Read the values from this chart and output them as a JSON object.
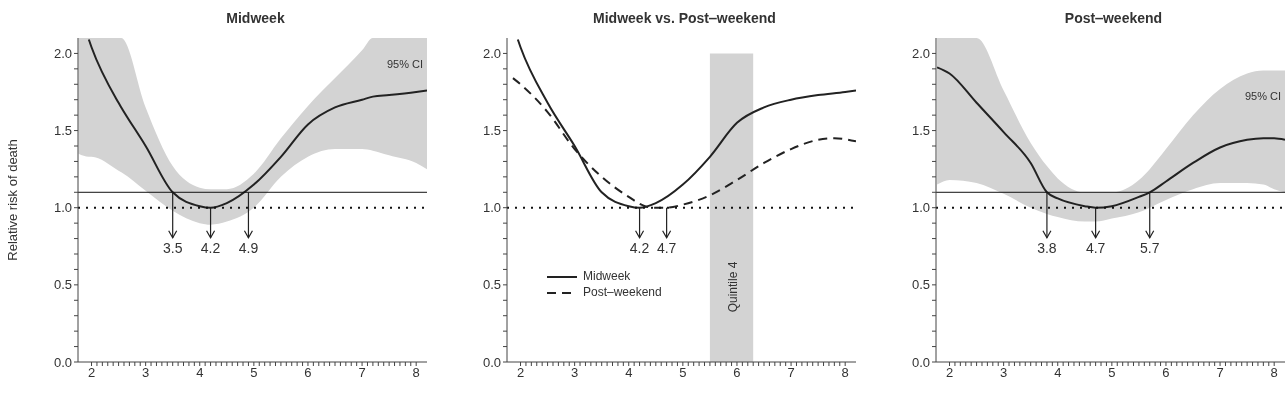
{
  "chart_data": [
    {
      "type": "line",
      "title": "Midweek",
      "ylabel": "Relative risk of death",
      "series": [
        {
          "color": "#222222",
          "line_style": "solid",
          "x": [
            1.76,
            1.95,
            2.0,
            2.5,
            2.55,
            3.0,
            3.5,
            4.0,
            4.2,
            4.5,
            5.0,
            5.5,
            6.0,
            6.5,
            7.0,
            7.2,
            7.5,
            8.0,
            8.2
          ],
          "values": [
            null,
            2.09,
            2.04,
            1.68,
            1.65,
            1.4,
            1.1,
            1.01,
            1.0,
            1.03,
            1.15,
            1.33,
            1.54,
            1.65,
            1.7,
            1.72,
            1.73,
            1.75,
            1.76
          ],
          "lower": [
            1.35,
            1.33,
            1.33,
            1.24,
            1.23,
            1.11,
            0.98,
            0.9,
            0.89,
            0.91,
            1.0,
            1.2,
            1.33,
            1.38,
            1.38,
            1.37,
            1.34,
            1.29,
            1.25
          ],
          "upper": [
            2.1,
            2.1,
            2.1,
            2.1,
            2.1,
            1.65,
            1.27,
            1.13,
            1.12,
            1.12,
            1.22,
            1.45,
            1.66,
            1.84,
            2.02,
            2.1,
            2.1,
            2.1,
            2.1
          ]
        }
      ],
      "xlim": [
        1.75,
        8.2
      ],
      "ylim": [
        0,
        2.1
      ],
      "xticks": [
        2,
        {
          "value": 2.1,
          "label": null
        },
        {
          "value": 2.2,
          "label": null
        },
        {
          "value": 2.3,
          "label": null
        },
        {
          "value": 2.4,
          "label": null
        },
        {
          "value": 2.5,
          "label": null
        },
        {
          "value": 2.6,
          "label": null
        },
        {
          "value": 2.7,
          "label": null
        },
        {
          "value": 2.8,
          "label": null
        },
        {
          "value": 2.9,
          "label": null
        },
        3,
        {
          "value": 3.1,
          "label": null
        },
        {
          "value": 3.2,
          "label": null
        },
        {
          "value": 3.3,
          "label": null
        },
        {
          "value": 3.4,
          "label": null
        },
        {
          "value": 3.5,
          "label": null
        },
        {
          "value": 3.6,
          "label": null
        },
        {
          "value": 3.7,
          "label": null
        },
        {
          "value": 3.8,
          "label": null
        },
        {
          "value": 3.9,
          "label": null
        },
        4,
        {
          "value": 4.1,
          "label": null
        },
        {
          "value": 4.2,
          "label": null
        },
        {
          "value": 4.3,
          "label": null
        },
        {
          "value": 4.4,
          "label": null
        },
        {
          "value": 4.5,
          "label": null
        },
        {
          "value": 4.6,
          "label": null
        },
        {
          "value": 4.7,
          "label": null
        },
        {
          "value": 4.8,
          "label": null
        },
        {
          "value": 4.9,
          "label": null
        },
        5,
        {
          "value": 5.1,
          "label": null
        },
        {
          "value": 5.2,
          "label": null
        },
        {
          "value": 5.3,
          "label": null
        },
        {
          "value": 5.4,
          "label": null
        },
        {
          "value": 5.5,
          "label": null
        },
        {
          "value": 5.6,
          "label": null
        },
        {
          "value": 5.7,
          "label": null
        },
        {
          "value": 5.8,
          "label": null
        },
        {
          "value": 5.9,
          "label": null
        },
        6,
        {
          "value": 6.1,
          "label": null
        },
        {
          "value": 6.2,
          "label": null
        },
        {
          "value": 6.3,
          "label": null
        },
        {
          "value": 6.4,
          "label": null
        },
        {
          "value": 6.5,
          "label": null
        },
        {
          "value": 6.6,
          "label": null
        },
        {
          "value": 6.7,
          "label": null
        },
        {
          "value": 6.8,
          "label": null
        },
        {
          "value": 6.9,
          "label": null
        },
        7,
        {
          "value": 7.1,
          "label": null
        },
        {
          "value": 7.2,
          "label": null
        },
        {
          "value": 7.3,
          "label": null
        },
        {
          "value": 7.4,
          "label": null
        },
        {
          "value": 7.5,
          "label": null
        },
        {
          "value": 7.6,
          "label": null
        },
        {
          "value": 7.7,
          "label": null
        },
        {
          "value": 7.8,
          "label": null
        },
        {
          "value": 7.9,
          "label": null
        },
        8
      ],
      "yticks": [
        {
          "value": 0,
          "label": "0.0"
        },
        {
          "value": 0.1,
          "label": null
        },
        {
          "value": 0.2,
          "label": null
        },
        {
          "value": 0.3,
          "label": null
        },
        {
          "value": 0.4,
          "label": null
        },
        {
          "value": 0.5,
          "label": "0.5"
        },
        {
          "value": 0.6,
          "label": null
        },
        {
          "value": 0.7,
          "label": null
        },
        {
          "value": 0.8,
          "label": null
        },
        {
          "value": 0.9,
          "label": null
        },
        {
          "value": 1,
          "label": "1.0"
        },
        {
          "value": 1.1,
          "label": null
        },
        {
          "value": 1.2,
          "label": null
        },
        {
          "value": 1.3,
          "label": null
        },
        {
          "value": 1.4,
          "label": null
        },
        {
          "value": 1.5,
          "label": "1.5"
        },
        {
          "value": 1.6,
          "label": null
        },
        {
          "value": 1.7,
          "label": null
        },
        {
          "value": 1.8,
          "label": null
        },
        {
          "value": 1.9,
          "label": null
        },
        {
          "value": 2,
          "label": "2.0"
        }
      ],
      "ref_lines": [
        {
          "axis": "y",
          "value": 1.1,
          "line_style": "solid"
        },
        {
          "axis": "y",
          "value": 1.0,
          "line_style": "dotted"
        }
      ],
      "annotations": [
        "95% CI",
        {
          "text": "3.5",
          "x": 3.5,
          "y": 1.1
        },
        {
          "text": "4.2",
          "x": 4.2,
          "y": 1.0
        },
        {
          "text": "4.9",
          "x": 4.9,
          "y": 1.1
        }
      ]
    },
    {
      "type": "line",
      "title": "Midweek vs. Post‒weekend",
      "series": [
        {
          "name": "Midweek",
          "color": "#222222",
          "line_style": "solid",
          "x": [
            1.95,
            2.0,
            2.5,
            3.0,
            3.5,
            4.0,
            4.2,
            4.5,
            5.0,
            5.5,
            6.0,
            6.5,
            7.0,
            7.5,
            8.0,
            8.2
          ],
          "values": [
            2.09,
            2.04,
            1.68,
            1.4,
            1.1,
            1.01,
            1.0,
            1.03,
            1.15,
            1.33,
            1.55,
            1.65,
            1.7,
            1.73,
            1.75,
            1.76
          ]
        },
        {
          "name": "Post‒weekend",
          "color": "#222222",
          "line_style": "dashed",
          "x": [
            1.86,
            2.0,
            2.5,
            3.0,
            3.5,
            4.0,
            4.3,
            4.5,
            4.7,
            5.0,
            5.5,
            6.0,
            6.5,
            7.0,
            7.5,
            7.8,
            8.2
          ],
          "values": [
            1.84,
            1.8,
            1.62,
            1.38,
            1.2,
            1.07,
            1.01,
            1.0,
            1.0,
            1.02,
            1.08,
            1.18,
            1.29,
            1.38,
            1.44,
            1.45,
            1.43
          ]
        }
      ],
      "xlim": [
        1.75,
        8.2
      ],
      "ylim": [
        0,
        2.1
      ],
      "xticks": [
        2,
        {
          "value": 2.1,
          "label": null
        },
        {
          "value": 2.2,
          "label": null
        },
        {
          "value": 2.3,
          "label": null
        },
        {
          "value": 2.4,
          "label": null
        },
        {
          "value": 2.5,
          "label": null
        },
        {
          "value": 2.6,
          "label": null
        },
        {
          "value": 2.7,
          "label": null
        },
        {
          "value": 2.8,
          "label": null
        },
        {
          "value": 2.9,
          "label": null
        },
        3,
        {
          "value": 3.1,
          "label": null
        },
        {
          "value": 3.2,
          "label": null
        },
        {
          "value": 3.3,
          "label": null
        },
        {
          "value": 3.4,
          "label": null
        },
        {
          "value": 3.5,
          "label": null
        },
        {
          "value": 3.6,
          "label": null
        },
        {
          "value": 3.7,
          "label": null
        },
        {
          "value": 3.8,
          "label": null
        },
        {
          "value": 3.9,
          "label": null
        },
        4,
        {
          "value": 4.1,
          "label": null
        },
        {
          "value": 4.2,
          "label": null
        },
        {
          "value": 4.3,
          "label": null
        },
        {
          "value": 4.4,
          "label": null
        },
        {
          "value": 4.5,
          "label": null
        },
        {
          "value": 4.6,
          "label": null
        },
        {
          "value": 4.7,
          "label": null
        },
        {
          "value": 4.8,
          "label": null
        },
        {
          "value": 4.9,
          "label": null
        },
        5,
        {
          "value": 5.1,
          "label": null
        },
        {
          "value": 5.2,
          "label": null
        },
        {
          "value": 5.3,
          "label": null
        },
        {
          "value": 5.4,
          "label": null
        },
        {
          "value": 5.5,
          "label": null
        },
        {
          "value": 5.6,
          "label": null
        },
        {
          "value": 5.7,
          "label": null
        },
        {
          "value": 5.8,
          "label": null
        },
        {
          "value": 5.9,
          "label": null
        },
        6,
        {
          "value": 6.1,
          "label": null
        },
        {
          "value": 6.2,
          "label": null
        },
        {
          "value": 6.3,
          "label": null
        },
        {
          "value": 6.4,
          "label": null
        },
        {
          "value": 6.5,
          "label": null
        },
        {
          "value": 6.6,
          "label": null
        },
        {
          "value": 6.7,
          "label": null
        },
        {
          "value": 6.8,
          "label": null
        },
        {
          "value": 6.9,
          "label": null
        },
        7,
        {
          "value": 7.1,
          "label": null
        },
        {
          "value": 7.2,
          "label": null
        },
        {
          "value": 7.3,
          "label": null
        },
        {
          "value": 7.4,
          "label": null
        },
        {
          "value": 7.5,
          "label": null
        },
        {
          "value": 7.6,
          "label": null
        },
        {
          "value": 7.7,
          "label": null
        },
        {
          "value": 7.8,
          "label": null
        },
        {
          "value": 7.9,
          "label": null
        },
        8
      ],
      "yticks": [
        {
          "value": 0,
          "label": "0.0"
        },
        {
          "value": 0.1,
          "label": null
        },
        {
          "value": 0.2,
          "label": null
        },
        {
          "value": 0.3,
          "label": null
        },
        {
          "value": 0.4,
          "label": null
        },
        {
          "value": 0.5,
          "label": "0.5"
        },
        {
          "value": 0.6,
          "label": null
        },
        {
          "value": 0.7,
          "label": null
        },
        {
          "value": 0.8,
          "label": null
        },
        {
          "value": 0.9,
          "label": null
        },
        {
          "value": 1,
          "label": "1.0"
        },
        {
          "value": 1.1,
          "label": null
        },
        {
          "value": 1.2,
          "label": null
        },
        {
          "value": 1.3,
          "label": null
        },
        {
          "value": 1.4,
          "label": null
        },
        {
          "value": 1.5,
          "label": "1.5"
        },
        {
          "value": 1.6,
          "label": null
        },
        {
          "value": 1.7,
          "label": null
        },
        {
          "value": 1.8,
          "label": null
        },
        {
          "value": 1.9,
          "label": null
        },
        {
          "value": 2,
          "label": "2.0"
        }
      ],
      "ref_lines": [
        {
          "axis": "y",
          "value": 1.0,
          "line_style": "dotted"
        }
      ],
      "bands": [
        {
          "axis": "x",
          "from": 5.5,
          "to": 6.3,
          "label": "Quintile 4",
          "color": "#d3d3d3"
        }
      ],
      "legend": "bottom left",
      "annotations": [
        {
          "text": "4.2",
          "x": 4.2,
          "y": 1.0
        },
        {
          "text": "4.7",
          "x": 4.7,
          "y": 1.0
        }
      ]
    },
    {
      "type": "line",
      "title": "Post‒weekend",
      "series": [
        {
          "color": "#222222",
          "line_style": "solid",
          "x": [
            1.77,
            2.0,
            2.5,
            3.0,
            3.5,
            3.8,
            4.0,
            4.5,
            4.7,
            5.0,
            5.5,
            5.7,
            6.0,
            6.5,
            7.0,
            7.5,
            7.8,
            8.0,
            8.2
          ],
          "values": [
            1.91,
            1.87,
            1.68,
            1.49,
            1.29,
            1.1,
            1.06,
            1.01,
            1.0,
            1.01,
            1.07,
            1.1,
            1.17,
            1.29,
            1.39,
            1.44,
            1.45,
            1.45,
            1.44
          ],
          "lower": [
            1.15,
            1.18,
            1.16,
            1.09,
            1.0,
            0.96,
            0.94,
            0.91,
            0.91,
            0.93,
            0.97,
            1.0,
            1.05,
            1.12,
            1.16,
            1.16,
            1.15,
            1.12,
            1.1
          ],
          "upper": [
            2.1,
            2.1,
            2.1,
            1.76,
            1.42,
            1.27,
            1.19,
            1.1,
            1.1,
            1.1,
            1.18,
            1.25,
            1.38,
            1.6,
            1.77,
            1.87,
            1.89,
            1.89,
            1.89
          ]
        }
      ],
      "xlim": [
        1.75,
        8.2
      ],
      "ylim": [
        0,
        2.1
      ],
      "xticks": [
        2,
        {
          "value": 2.1,
          "label": null
        },
        {
          "value": 2.2,
          "label": null
        },
        {
          "value": 2.3,
          "label": null
        },
        {
          "value": 2.4,
          "label": null
        },
        {
          "value": 2.5,
          "label": null
        },
        {
          "value": 2.6,
          "label": null
        },
        {
          "value": 2.7,
          "label": null
        },
        {
          "value": 2.8,
          "label": null
        },
        {
          "value": 2.9,
          "label": null
        },
        3,
        {
          "value": 3.1,
          "label": null
        },
        {
          "value": 3.2,
          "label": null
        },
        {
          "value": 3.3,
          "label": null
        },
        {
          "value": 3.4,
          "label": null
        },
        {
          "value": 3.5,
          "label": null
        },
        {
          "value": 3.6,
          "label": null
        },
        {
          "value": 3.7,
          "label": null
        },
        {
          "value": 3.8,
          "label": null
        },
        {
          "value": 3.9,
          "label": null
        },
        4,
        {
          "value": 4.1,
          "label": null
        },
        {
          "value": 4.2,
          "label": null
        },
        {
          "value": 4.3,
          "label": null
        },
        {
          "value": 4.4,
          "label": null
        },
        {
          "value": 4.5,
          "label": null
        },
        {
          "value": 4.6,
          "label": null
        },
        {
          "value": 4.7,
          "label": null
        },
        {
          "value": 4.8,
          "label": null
        },
        {
          "value": 4.9,
          "label": null
        },
        5,
        {
          "value": 5.1,
          "label": null
        },
        {
          "value": 5.2,
          "label": null
        },
        {
          "value": 5.3,
          "label": null
        },
        {
          "value": 5.4,
          "label": null
        },
        {
          "value": 5.5,
          "label": null
        },
        {
          "value": 5.6,
          "label": null
        },
        {
          "value": 5.7,
          "label": null
        },
        {
          "value": 5.8,
          "label": null
        },
        {
          "value": 5.9,
          "label": null
        },
        6,
        {
          "value": 6.1,
          "label": null
        },
        {
          "value": 6.2,
          "label": null
        },
        {
          "value": 6.3,
          "label": null
        },
        {
          "value": 6.4,
          "label": null
        },
        {
          "value": 6.5,
          "label": null
        },
        {
          "value": 6.6,
          "label": null
        },
        {
          "value": 6.7,
          "label": null
        },
        {
          "value": 6.8,
          "label": null
        },
        {
          "value": 6.9,
          "label": null
        },
        7,
        {
          "value": 7.1,
          "label": null
        },
        {
          "value": 7.2,
          "label": null
        },
        {
          "value": 7.3,
          "label": null
        },
        {
          "value": 7.4,
          "label": null
        },
        {
          "value": 7.5,
          "label": null
        },
        {
          "value": 7.6,
          "label": null
        },
        {
          "value": 7.7,
          "label": null
        },
        {
          "value": 7.8,
          "label": null
        },
        {
          "value": 7.9,
          "label": null
        },
        8
      ],
      "yticks": [
        {
          "value": 0,
          "label": "0.0"
        },
        {
          "value": 0.1,
          "label": null
        },
        {
          "value": 0.2,
          "label": null
        },
        {
          "value": 0.3,
          "label": null
        },
        {
          "value": 0.4,
          "label": null
        },
        {
          "value": 0.5,
          "label": "0.5"
        },
        {
          "value": 0.6,
          "label": null
        },
        {
          "value": 0.7,
          "label": null
        },
        {
          "value": 0.8,
          "label": null
        },
        {
          "value": 0.9,
          "label": null
        },
        {
          "value": 1,
          "label": "1.0"
        },
        {
          "value": 1.1,
          "label": null
        },
        {
          "value": 1.2,
          "label": null
        },
        {
          "value": 1.3,
          "label": null
        },
        {
          "value": 1.4,
          "label": null
        },
        {
          "value": 1.5,
          "label": "1.5"
        },
        {
          "value": 1.6,
          "label": null
        },
        {
          "value": 1.7,
          "label": null
        },
        {
          "value": 1.8,
          "label": null
        },
        {
          "value": 1.9,
          "label": null
        },
        {
          "value": 2,
          "label": "2.0"
        }
      ],
      "ref_lines": [
        {
          "axis": "y",
          "value": 1.1,
          "line_style": "solid"
        },
        {
          "axis": "y",
          "value": 1.0,
          "line_style": "dotted"
        }
      ],
      "annotations": [
        "95% CI",
        {
          "text": "3.8",
          "x": 3.8,
          "y": 1.1
        },
        {
          "text": "4.7",
          "x": 4.7,
          "y": 1.0
        },
        {
          "text": "5.7",
          "x": 5.7,
          "y": 1.1
        }
      ]
    }
  ]
}
